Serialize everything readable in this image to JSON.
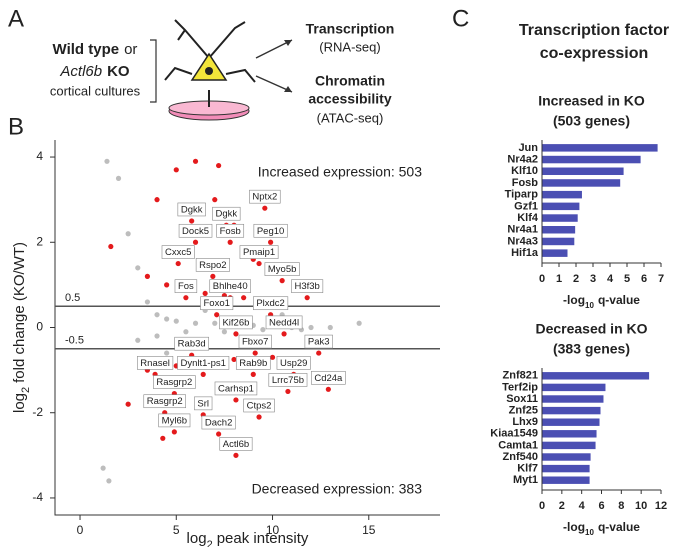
{
  "letters": [
    "A",
    "B",
    "C"
  ],
  "panel_a": {
    "condition": [
      "Wild type",
      "or",
      "Actl6b",
      "KO",
      "cortical cultures"
    ],
    "outputs": [
      [
        "Transcription",
        "(RNA-seq)"
      ],
      [
        "Chromatin",
        "accessibility",
        "(ATAC-seq)"
      ]
    ]
  },
  "heading": [
    "Transcription factor",
    "co-expression"
  ],
  "chart_data": [
    {
      "type": "scatter",
      "x_label": {
        "pre": "log",
        "sub": "2",
        "post": "peak intensity"
      },
      "y_label": {
        "pre": "log",
        "sub": "2",
        "post": "fold change (KO/WT)"
      },
      "annotations": [
        "Increased expression: 503",
        "Decreased expression: 383"
      ],
      "thresholds": [
        0.5,
        -0.5
      ],
      "xlim": [
        -1.3,
        18.7
      ],
      "ylim": [
        -4.4,
        4.4
      ],
      "xticks": [
        0,
        5,
        10,
        15
      ],
      "yticks": [
        -4,
        -2,
        0,
        2,
        4
      ],
      "series": [
        {
          "color": "#bdbdbd",
          "x": [
            1.4,
            2.0,
            1.2,
            1.5,
            14.5,
            2.5,
            3.0,
            3.5,
            4.0,
            4.5,
            5.0,
            6.0,
            7.0,
            8.0,
            9.0,
            10.0,
            11.0,
            12.0,
            13.0,
            3.0,
            4.0,
            5.5,
            7.5,
            9.5,
            11.5,
            2.5,
            4.5,
            6.5,
            8.5,
            10.5
          ],
          "y": [
            3.9,
            3.5,
            -3.3,
            -3.6,
            0.1,
            2.2,
            1.4,
            0.6,
            0.3,
            0.2,
            0.15,
            0.1,
            0.1,
            0.05,
            0.05,
            0.05,
            0.0,
            0.0,
            0.0,
            -0.3,
            -0.2,
            -0.1,
            -0.1,
            -0.05,
            -0.05,
            -1.8,
            -0.6,
            0.4,
            -0.3,
            0.3
          ]
        },
        {
          "color": "#e41a1c",
          "x": [
            4.0,
            5.0,
            6.0,
            7.0,
            8.0,
            9.0,
            3.5,
            4.5,
            5.5,
            6.5,
            7.5,
            8.5,
            9.5,
            3.5,
            5.0,
            6.5,
            8.0,
            2.5,
            4.3,
            1.6,
            7.2,
            10.0
          ],
          "y": [
            3.0,
            3.7,
            3.9,
            3.0,
            2.4,
            1.6,
            1.2,
            1.0,
            0.9,
            0.8,
            0.75,
            0.7,
            0.65,
            -1.0,
            -0.9,
            -0.8,
            -0.75,
            -1.8,
            -2.6,
            1.9,
            3.8,
            -0.7
          ]
        },
        {
          "color": "#e41a1c",
          "labels": [
            "Nptx2",
            "Dgkk",
            "Dgkk",
            "Dock5",
            "Fosb",
            "Peg10",
            "Pmaip1",
            "Cxxc5",
            "Rspo2",
            "Myo5b",
            "Fos",
            "Bhlhe40",
            "H3f3b",
            "Foxo1",
            "Plxdc2",
            "Kif26b",
            "Nedd4l",
            "Rab3d",
            "Fbxo7",
            "Pak3",
            "Rnasel",
            "Dynlt1-ps1",
            "Rab9b",
            "Usp29",
            "Cd24a",
            "Lrrc75b",
            "Rasgrp2",
            "Carhsp1",
            "Rasgrp2",
            "Srl",
            "Ctps2",
            "Myl6b",
            "Dach2",
            "Actl6b"
          ],
          "x": [
            9.6,
            5.8,
            7.6,
            6.0,
            7.8,
            9.9,
            9.3,
            5.1,
            6.9,
            10.5,
            5.5,
            7.8,
            11.8,
            7.1,
            9.9,
            8.1,
            10.6,
            5.8,
            9.1,
            12.4,
            3.9,
            6.4,
            9.0,
            11.1,
            12.9,
            10.8,
            4.9,
            8.1,
            4.4,
            6.4,
            9.3,
            4.9,
            7.2,
            8.1
          ],
          "y": [
            2.8,
            2.5,
            2.4,
            2.0,
            2.0,
            2.0,
            1.5,
            1.5,
            1.2,
            1.1,
            0.7,
            0.7,
            0.7,
            0.3,
            0.3,
            -0.15,
            -0.15,
            -0.65,
            -0.6,
            -0.6,
            -1.1,
            -1.1,
            -1.1,
            -1.1,
            -1.45,
            -1.5,
            -1.55,
            -1.7,
            -2.0,
            -2.05,
            -2.1,
            -2.45,
            -2.5,
            -3.0
          ]
        }
      ]
    },
    {
      "type": "barh",
      "title": [
        "Increased in KO",
        "(503 genes)"
      ],
      "categories": [
        "Jun",
        "Nr4a2",
        "Klf10",
        "Fosb",
        "Tiparp",
        "Gzf1",
        "Klf4",
        "Nr4a1",
        "Nr4a3",
        "Hif1a"
      ],
      "values": [
        6.8,
        5.8,
        4.8,
        4.6,
        2.35,
        2.2,
        2.1,
        1.95,
        1.9,
        1.5
      ],
      "color": "#4b4fb3",
      "xlim": [
        0,
        7
      ],
      "xticks": [
        0,
        1,
        2,
        3,
        4,
        5,
        6,
        7
      ],
      "x_label": {
        "pre": "-log",
        "sub": "10",
        "post": "q-value"
      }
    },
    {
      "type": "barh",
      "title": [
        "Decreased in KO",
        "(383 genes)"
      ],
      "categories": [
        "Znf821",
        "Terf2ip",
        "Sox11",
        "Znf25",
        "Lhx9",
        "Kiaa1549",
        "Camta1",
        "Znf540",
        "Klf7",
        "Myt1"
      ],
      "values": [
        10.8,
        6.4,
        6.2,
        5.9,
        5.8,
        5.5,
        5.4,
        4.9,
        4.8,
        4.8
      ],
      "color": "#4b4fb3",
      "xlim": [
        0,
        12
      ],
      "xticks": [
        0,
        2,
        4,
        6,
        8,
        10,
        12
      ],
      "x_label": {
        "pre": "-log",
        "sub": "10",
        "post": "q-value"
      }
    }
  ]
}
